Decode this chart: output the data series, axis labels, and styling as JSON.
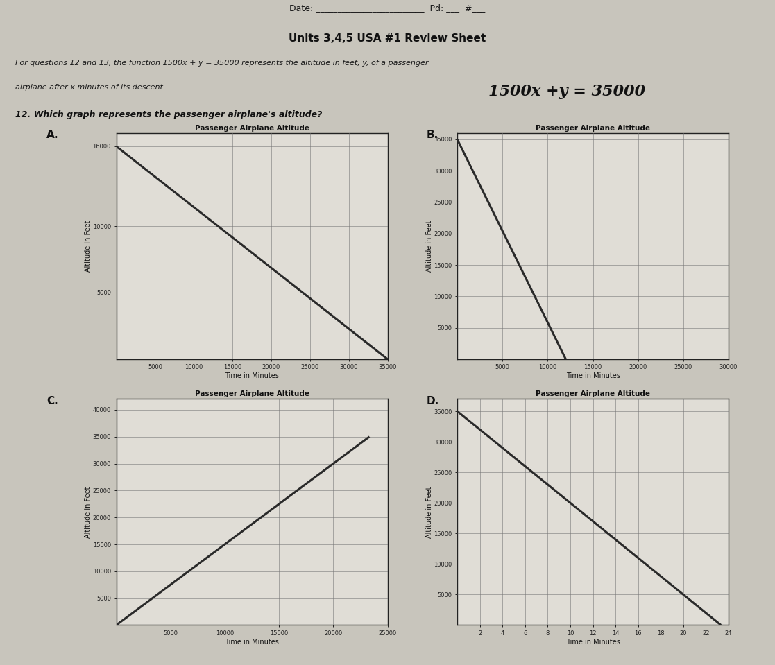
{
  "date_line": "Date: _________________________  Pd: ___  #___",
  "title": "Units 3,4,5 USA #1 Review Sheet",
  "intro1": "For questions 12 and 13, the function 1500x + y = 35000 represents the altitude in feet, y, of a passenger",
  "intro2": "airplane after x minutes of its descent.",
  "handwritten": "1500x +y = 35000",
  "question": "12. Which graph represents the passenger airplane's altitude?",
  "bg_color": "#c8c5bc",
  "paper_color": "#e8e5de",
  "graph_bg": "#e0ddd6",
  "line_color": "#2a2a2a",
  "grid_color": "#777777",
  "axis_color": "#222222",
  "graph_A": {
    "label": "A.",
    "title": "Passenger Airplane Altitude",
    "xlabel": "Time in Minutes",
    "ylabel": "Altitude in Feet",
    "xlim": [
      0,
      35000
    ],
    "ylim": [
      0,
      17000
    ],
    "xticks": [
      5000,
      10000,
      15000,
      20000,
      25000,
      30000,
      35000
    ],
    "yticks": [
      5000,
      10000,
      16000
    ],
    "x_start": 0,
    "y_start": 16000,
    "x_end": 35000,
    "y_end": 0
  },
  "graph_B": {
    "label": "B.",
    "title": "Passenger Airplane Altitude",
    "xlabel": "Time in Minutes",
    "ylabel": "Altitude in Feet",
    "xlim": [
      0,
      30000
    ],
    "ylim": [
      0,
      36000
    ],
    "xticks": [
      5000,
      10000,
      15000,
      20000,
      25000,
      30000
    ],
    "yticks": [
      5000,
      10000,
      15000,
      20000,
      25000,
      30000,
      35000
    ],
    "x_start": 0,
    "y_start": 35000,
    "x_end": 12000,
    "y_end": 0
  },
  "graph_C": {
    "label": "C.",
    "title": "Passenger Airplane Altitude",
    "xlabel": "Time in Minutes",
    "ylabel": "Altitude in Feet",
    "xlim": [
      0,
      25000
    ],
    "ylim": [
      0,
      42000
    ],
    "xticks": [
      5000,
      10000,
      15000,
      20000,
      25000
    ],
    "yticks": [
      5000,
      10000,
      15000,
      20000,
      25000,
      30000,
      35000,
      40000
    ],
    "x_start": 0,
    "y_start": 0,
    "x_end": 23333,
    "y_end": 35000
  },
  "graph_D": {
    "label": "D.",
    "title": "Passenger Airplane Altitude",
    "xlabel": "Time in Minutes",
    "ylabel": "Altitude in Feet",
    "xlim": [
      0,
      24
    ],
    "ylim": [
      0,
      37000
    ],
    "xticks": [
      2,
      4,
      6,
      8,
      10,
      12,
      14,
      16,
      18,
      20,
      22,
      24
    ],
    "yticks": [
      5000,
      10000,
      15000,
      20000,
      25000,
      30000,
      35000
    ],
    "x_start": 0,
    "y_start": 35000,
    "x_end": 23.333,
    "y_end": 0
  }
}
